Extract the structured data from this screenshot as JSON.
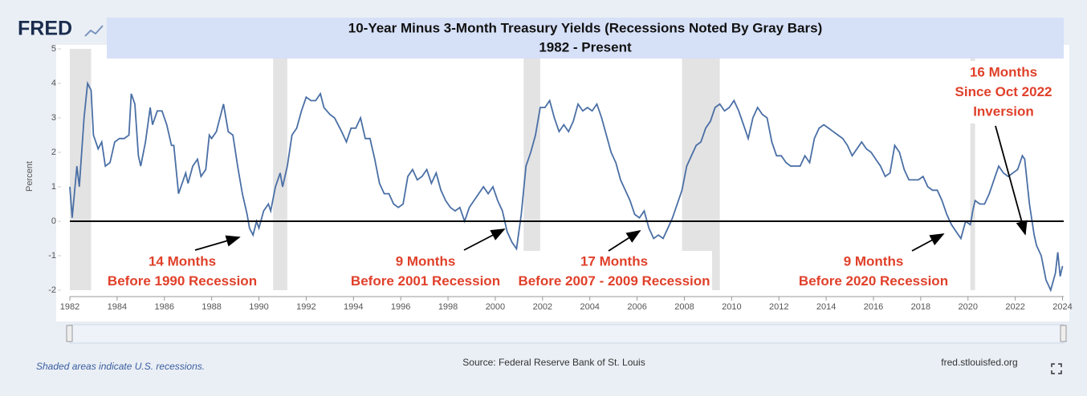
{
  "chart_data": {
    "type": "line",
    "logo": "FRED",
    "title": "10-Year Minus 3-Month Treasury Yields (Recessions Noted By Gray Bars)",
    "subtitle": "1982 - Present",
    "ylabel": "Percent",
    "xlim": [
      1982,
      2024.05
    ],
    "ylim": [
      -2,
      5
    ],
    "xticks": [
      1982,
      1984,
      1986,
      1988,
      1990,
      1992,
      1994,
      1996,
      1998,
      2000,
      2002,
      2004,
      2006,
      2008,
      2010,
      2012,
      2014,
      2016,
      2018,
      2020,
      2022,
      2024
    ],
    "yticks": [
      -2,
      -1,
      0,
      1,
      2,
      3,
      4,
      5
    ],
    "hline": 0,
    "recessions": [
      [
        1982,
        1982.9
      ],
      [
        1990.6,
        1991.2
      ],
      [
        2001.2,
        2001.9
      ],
      [
        2007.9,
        2009.5
      ],
      [
        2020.1,
        2020.3
      ]
    ],
    "recession_color": "#e3e3e3",
    "series": [
      {
        "name": "10-Year Minus 3-Month Treasury Yields",
        "color": "#4a6fa5",
        "x": [
          1982.0,
          1982.1,
          1982.3,
          1982.4,
          1982.6,
          1982.75,
          1982.9,
          1983.0,
          1983.2,
          1983.35,
          1983.5,
          1983.7,
          1983.9,
          1984.1,
          1984.3,
          1984.5,
          1984.6,
          1984.75,
          1984.9,
          1985.0,
          1985.2,
          1985.4,
          1985.5,
          1985.7,
          1985.9,
          1986.1,
          1986.3,
          1986.4,
          1986.6,
          1986.7,
          1986.9,
          1987.0,
          1987.2,
          1987.4,
          1987.55,
          1987.75,
          1987.9,
          1988.0,
          1988.2,
          1988.5,
          1988.7,
          1988.9,
          1989.1,
          1989.3,
          1989.5,
          1989.6,
          1989.75,
          1989.9,
          1990.0,
          1990.2,
          1990.4,
          1990.5,
          1990.7,
          1990.9,
          1991.0,
          1991.2,
          1991.4,
          1991.6,
          1991.8,
          1992.0,
          1992.2,
          1992.4,
          1992.6,
          1992.75,
          1993.0,
          1993.2,
          1993.5,
          1993.7,
          1993.9,
          1994.1,
          1994.3,
          1994.5,
          1994.7,
          1994.9,
          1995.1,
          1995.3,
          1995.5,
          1995.7,
          1995.9,
          1996.1,
          1996.3,
          1996.5,
          1996.7,
          1996.9,
          1997.1,
          1997.3,
          1997.5,
          1997.7,
          1997.9,
          1998.1,
          1998.3,
          1998.5,
          1998.7,
          1998.9,
          1999.1,
          1999.3,
          1999.5,
          1999.7,
          1999.9,
          2000.1,
          2000.3,
          2000.5,
          2000.7,
          2000.9,
          2001.1,
          2001.3,
          2001.5,
          2001.7,
          2001.9,
          2002.1,
          2002.3,
          2002.5,
          2002.7,
          2002.9,
          2003.1,
          2003.3,
          2003.5,
          2003.7,
          2003.9,
          2004.1,
          2004.3,
          2004.5,
          2004.7,
          2004.9,
          2005.1,
          2005.3,
          2005.5,
          2005.7,
          2005.9,
          2006.1,
          2006.3,
          2006.5,
          2006.7,
          2006.9,
          2007.1,
          2007.3,
          2007.5,
          2007.7,
          2007.9,
          2008.1,
          2008.3,
          2008.5,
          2008.7,
          2008.9,
          2009.1,
          2009.3,
          2009.5,
          2009.7,
          2009.9,
          2010.1,
          2010.3,
          2010.5,
          2010.7,
          2010.9,
          2011.1,
          2011.3,
          2011.5,
          2011.7,
          2011.9,
          2012.1,
          2012.3,
          2012.5,
          2012.7,
          2012.9,
          2013.1,
          2013.3,
          2013.5,
          2013.7,
          2013.9,
          2014.1,
          2014.3,
          2014.5,
          2014.7,
          2014.9,
          2015.1,
          2015.3,
          2015.5,
          2015.7,
          2015.9,
          2016.1,
          2016.3,
          2016.5,
          2016.7,
          2016.9,
          2017.1,
          2017.3,
          2017.5,
          2017.7,
          2017.9,
          2018.1,
          2018.3,
          2018.5,
          2018.7,
          2018.9,
          2019.1,
          2019.3,
          2019.5,
          2019.7,
          2019.9,
          2020.1,
          2020.2,
          2020.3,
          2020.5,
          2020.7,
          2020.9,
          2021.1,
          2021.3,
          2021.5,
          2021.7,
          2021.9,
          2022.1,
          2022.3,
          2022.4,
          2022.6,
          2022.8,
          2022.9,
          2023.1,
          2023.3,
          2023.5,
          2023.7,
          2023.8,
          2023.9,
          2024.0
        ],
        "values": [
          1.0,
          0.1,
          1.6,
          1.0,
          3.0,
          4.0,
          3.8,
          2.5,
          2.1,
          2.3,
          1.6,
          1.7,
          2.3,
          2.4,
          2.4,
          2.5,
          3.7,
          3.4,
          1.9,
          1.6,
          2.3,
          3.3,
          2.8,
          3.2,
          3.2,
          2.8,
          2.2,
          2.2,
          0.8,
          1.0,
          1.4,
          1.1,
          1.6,
          1.8,
          1.3,
          1.5,
          2.5,
          2.4,
          2.6,
          3.4,
          2.6,
          2.5,
          1.6,
          0.8,
          0.2,
          -0.2,
          -0.4,
          0.0,
          -0.2,
          0.3,
          0.5,
          0.3,
          1.0,
          1.4,
          1.0,
          1.6,
          2.5,
          2.7,
          3.2,
          3.6,
          3.5,
          3.5,
          3.7,
          3.3,
          3.1,
          3.0,
          2.6,
          2.3,
          2.7,
          2.7,
          3.0,
          2.4,
          2.4,
          1.8,
          1.1,
          0.8,
          0.8,
          0.5,
          0.4,
          0.5,
          1.3,
          1.5,
          1.2,
          1.3,
          1.5,
          1.1,
          1.4,
          0.9,
          0.6,
          0.4,
          0.3,
          0.4,
          0.0,
          0.4,
          0.6,
          0.8,
          1.0,
          0.8,
          1.0,
          0.6,
          0.3,
          -0.3,
          -0.6,
          -0.8,
          0.2,
          1.6,
          2.0,
          2.5,
          3.3,
          3.3,
          3.5,
          3.0,
          2.6,
          2.8,
          2.6,
          2.9,
          3.4,
          3.2,
          3.3,
          3.2,
          3.4,
          3.0,
          2.5,
          2.0,
          1.7,
          1.2,
          0.9,
          0.6,
          0.2,
          0.1,
          0.3,
          -0.2,
          -0.5,
          -0.4,
          -0.5,
          -0.2,
          0.1,
          0.5,
          0.9,
          1.6,
          1.9,
          2.2,
          2.3,
          2.7,
          2.9,
          3.3,
          3.4,
          3.2,
          3.3,
          3.5,
          3.2,
          2.8,
          2.4,
          3.0,
          3.3,
          3.1,
          3.0,
          2.3,
          1.9,
          1.9,
          1.7,
          1.6,
          1.6,
          1.6,
          1.9,
          1.7,
          2.4,
          2.7,
          2.8,
          2.7,
          2.6,
          2.5,
          2.4,
          2.2,
          1.9,
          2.1,
          2.3,
          2.1,
          2.0,
          1.8,
          1.6,
          1.3,
          1.4,
          2.2,
          2.0,
          1.5,
          1.2,
          1.2,
          1.2,
          1.3,
          1.0,
          0.9,
          0.9,
          0.6,
          0.2,
          -0.1,
          -0.3,
          -0.5,
          0.0,
          -0.1,
          0.3,
          0.6,
          0.5,
          0.5,
          0.8,
          1.2,
          1.6,
          1.4,
          1.3,
          1.4,
          1.5,
          1.9,
          1.8,
          0.5,
          -0.4,
          -0.7,
          -1.0,
          -1.7,
          -2.0,
          -1.5,
          -0.9,
          -1.6,
          -1.3
        ]
      }
    ],
    "annotations": [
      {
        "lines": [
          "14 Months",
          "Before 1990 Recession"
        ]
      },
      {
        "lines": [
          "9 Months",
          "Before 2001 Recession"
        ]
      },
      {
        "lines": [
          "17 Months",
          "Before 2007 - 2009 Recession"
        ]
      },
      {
        "lines": [
          "9 Months",
          "Before 2020 Recession"
        ]
      },
      {
        "lines": [
          "16 Months",
          "Since Oct 2022",
          "Inversion"
        ]
      }
    ],
    "footnote": "Shaded areas indicate U.S. recessions.",
    "source": "Source: Federal Reserve Bank of St. Louis",
    "site": "fred.stlouisfed.org"
  }
}
